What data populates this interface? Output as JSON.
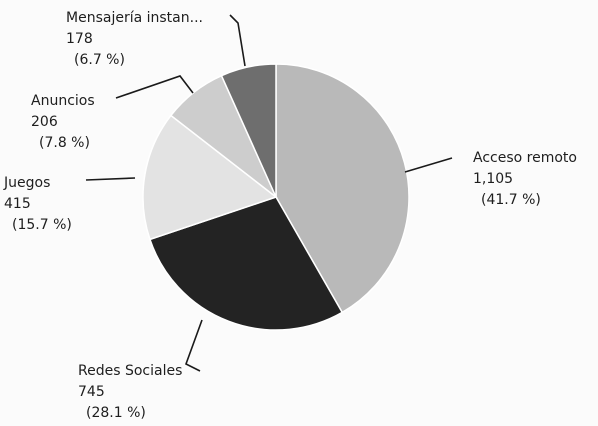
{
  "chart_data": {
    "type": "pie",
    "title": "",
    "slices": [
      {
        "label": "Acceso remoto",
        "value": 1105,
        "percent": "(41.7 %)",
        "value_text": "1,105",
        "color": "#b9b9b9"
      },
      {
        "label": "Redes Sociales",
        "value": 745,
        "percent": "(28.1 %)",
        "value_text": "745",
        "color": "#232323"
      },
      {
        "label": "Juegos",
        "value": 415,
        "percent": "(15.7 %)",
        "value_text": "415",
        "color": "#e3e3e3"
      },
      {
        "label": "Anuncios",
        "value": 206,
        "percent": "(7.8 %)",
        "value_text": "206",
        "color": "#cdcdcd"
      },
      {
        "label": "Mensajería instan...",
        "value": 178,
        "percent": "(6.7 %)",
        "value_text": "178",
        "color": "#6e6e6e"
      }
    ],
    "start_angle": "12 o'clock",
    "direction": "clockwise",
    "legend": "none"
  }
}
